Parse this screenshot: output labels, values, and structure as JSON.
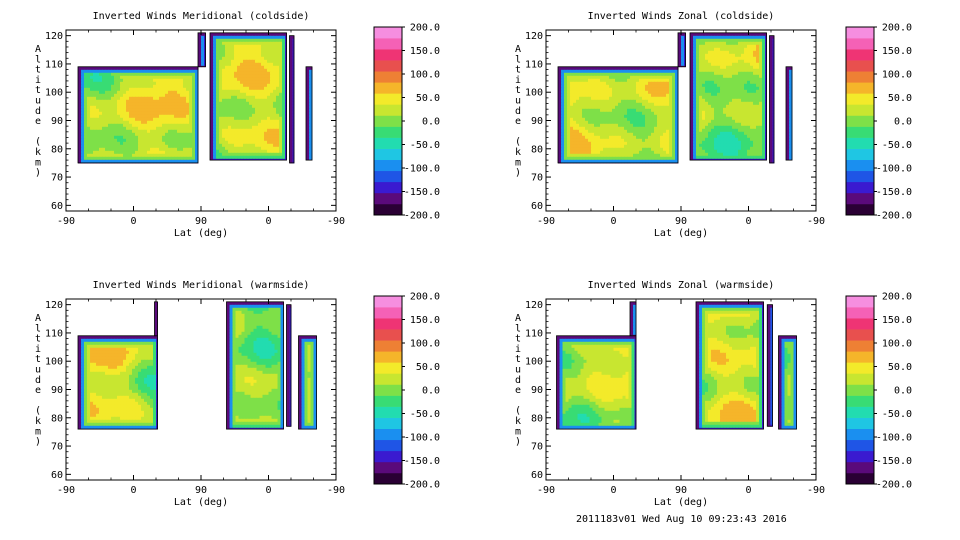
{
  "chart_data": [
    {
      "type": "heatmap",
      "title": "Inverted Winds Meridional (coldside)",
      "xlabel": "Lat (deg)",
      "ylabel": "Altitude (km)",
      "x_tick_labels": [
        "-90",
        "0",
        "90",
        "0",
        "-90"
      ],
      "y_ticks": [
        60,
        70,
        80,
        90,
        100,
        110,
        120
      ],
      "ylim": [
        58,
        122
      ],
      "colorbar": {
        "range": [
          -200,
          200
        ],
        "labels": [
          "200.0",
          "150.0",
          "100.0",
          "50.0",
          "0.0",
          "-50.0",
          "-100.0",
          "-150.0",
          "-200.0"
        ]
      },
      "coverage_segments": [
        {
          "x": [
            -74,
            86
          ],
          "y": [
            75,
            109
          ]
        },
        {
          "x": [
            86,
            96
          ],
          "y": [
            109,
            121
          ]
        },
        {
          "x": [
            102,
            204
          ],
          "y": [
            76,
            121
          ]
        },
        {
          "x": [
            208,
            214
          ],
          "y": [
            75,
            120
          ]
        },
        {
          "x": [
            230,
            238
          ],
          "y": [
            76,
            109
          ]
        }
      ]
    },
    {
      "type": "heatmap",
      "title": "Inverted Winds Zonal (coldside)",
      "xlabel": "Lat (deg)",
      "ylabel": "Altitude (km)",
      "x_tick_labels": [
        "-90",
        "0",
        "90",
        "0",
        "-90"
      ],
      "y_ticks": [
        60,
        70,
        80,
        90,
        100,
        110,
        120
      ],
      "ylim": [
        58,
        122
      ],
      "colorbar": {
        "range": [
          -200,
          200
        ],
        "labels": [
          "200.0",
          "150.0",
          "100.0",
          "50.0",
          "0.0",
          "-50.0",
          "-100.0",
          "-150.0",
          "-200.0"
        ]
      },
      "coverage_segments": [
        {
          "x": [
            -74,
            86
          ],
          "y": [
            75,
            109
          ]
        },
        {
          "x": [
            86,
            96
          ],
          "y": [
            109,
            121
          ]
        },
        {
          "x": [
            102,
            204
          ],
          "y": [
            76,
            121
          ]
        },
        {
          "x": [
            208,
            214
          ],
          "y": [
            75,
            120
          ]
        },
        {
          "x": [
            230,
            238
          ],
          "y": [
            76,
            109
          ]
        }
      ]
    },
    {
      "type": "heatmap",
      "title": "Inverted Winds Meridional (warmside)",
      "xlabel": "Lat (deg)",
      "ylabel": "Altitude (km)",
      "x_tick_labels": [
        "-90",
        "0",
        "90",
        "0",
        "-90"
      ],
      "y_ticks": [
        60,
        70,
        80,
        90,
        100,
        110,
        120
      ],
      "ylim": [
        58,
        122
      ],
      "colorbar": {
        "range": [
          -200,
          200
        ],
        "labels": [
          "200.0",
          "150.0",
          "100.0",
          "50.0",
          "0.0",
          "-50.0",
          "-100.0",
          "-150.0",
          "-200.0"
        ]
      },
      "coverage_segments": [
        {
          "x": [
            -74,
            32
          ],
          "y": [
            76,
            109
          ]
        },
        {
          "x": [
            28,
            32
          ],
          "y": [
            109,
            121
          ]
        },
        {
          "x": [
            124,
            200
          ],
          "y": [
            76,
            121
          ]
        },
        {
          "x": [
            204,
            210
          ],
          "y": [
            77,
            120
          ]
        },
        {
          "x": [
            220,
            244
          ],
          "y": [
            76,
            109
          ]
        }
      ]
    },
    {
      "type": "heatmap",
      "title": "Inverted Winds Zonal (warmside)",
      "xlabel": "Lat (deg)",
      "ylabel": "Altitude (km)",
      "x_tick_labels": [
        "-90",
        "0",
        "90",
        "0",
        "-90"
      ],
      "y_ticks": [
        60,
        70,
        80,
        90,
        100,
        110,
        120
      ],
      "ylim": [
        58,
        122
      ],
      "colorbar": {
        "range": [
          -200,
          200
        ],
        "labels": [
          "200.0",
          "150.0",
          "100.0",
          "50.0",
          "0.0",
          "-50.0",
          "-100.0",
          "-150.0",
          "-200.0"
        ]
      },
      "coverage_segments": [
        {
          "x": [
            -76,
            30
          ],
          "y": [
            76,
            109
          ]
        },
        {
          "x": [
            22,
            30
          ],
          "y": [
            109,
            121
          ]
        },
        {
          "x": [
            110,
            200
          ],
          "y": [
            76,
            121
          ]
        },
        {
          "x": [
            205,
            212
          ],
          "y": [
            77,
            120
          ]
        },
        {
          "x": [
            220,
            244
          ],
          "y": [
            76,
            109
          ]
        }
      ]
    }
  ],
  "colormap": [
    "#2a0034",
    "#5a0a7a",
    "#3a1ad0",
    "#1f55e6",
    "#1a8ff0",
    "#1fc6e3",
    "#22dcb0",
    "#38dc74",
    "#7ee048",
    "#c8e630",
    "#f3ea2a",
    "#f5b52a",
    "#ee8034",
    "#e8504e",
    "#ef3474",
    "#f561b6",
    "#f68ee0"
  ],
  "footer": "2011183v01 Wed Aug 10 09:23:43 2016"
}
